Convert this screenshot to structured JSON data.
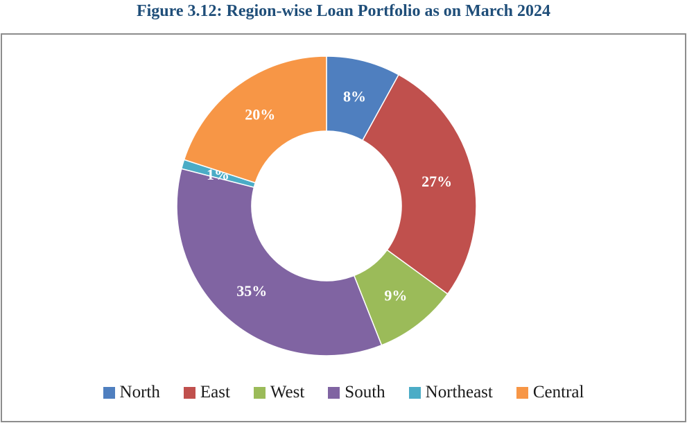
{
  "title": "Figure 3.12: Region-wise Loan Portfolio as on March 2024",
  "chart_data": {
    "type": "pie",
    "style": "donut",
    "legend_position": "bottom",
    "categories": [
      "North",
      "East",
      "West",
      "South",
      "Northeast",
      "Central"
    ],
    "values": [
      8,
      27,
      9,
      35,
      1,
      20
    ],
    "labels": [
      "8%",
      "27%",
      "9%",
      "35%",
      "1%",
      "20%"
    ],
    "colors": [
      "#4f7fbf",
      "#c0504d",
      "#9bbb59",
      "#8064a2",
      "#4bacc6",
      "#f79646"
    ]
  }
}
